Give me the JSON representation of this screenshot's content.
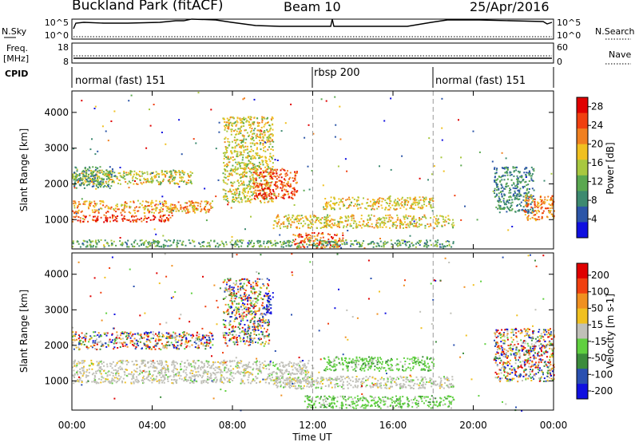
{
  "header": {
    "title": "Buckland Park (fitACF)",
    "beam": "Beam 10",
    "date": "25/Apr/2016"
  },
  "left_labels": {
    "nsky": "N.Sky",
    "freq": "Freq.",
    "freq_unit": "[MHz]",
    "cpid": "CPID"
  },
  "right_labels": {
    "nsearch": "N.Search",
    "nave": "Nave"
  },
  "nsky_axis": {
    "top": "10^5",
    "bottom": "10^0"
  },
  "freq_axis": {
    "top": "18",
    "bottom": "8"
  },
  "nave_axis": {
    "top": "60",
    "bottom": "0"
  },
  "cpid_segments": [
    {
      "label": "normal (fast) 151",
      "start_hour": 0,
      "end_hour": 12
    },
    {
      "label": "rbsp 200",
      "start_hour": 12,
      "end_hour": 18
    },
    {
      "label": "normal (fast) 151",
      "start_hour": 18,
      "end_hour": 24
    }
  ],
  "chart_data": [
    {
      "type": "heatmap",
      "name": "Power",
      "ylabel": "Slant Range [km]",
      "yticks": [
        1000,
        2000,
        3000,
        4000
      ],
      "ylim": [
        180,
        4600
      ],
      "colorbar_label": "Power [dB]",
      "colorbar_ticks": [
        4,
        8,
        12,
        16,
        20,
        24,
        28
      ],
      "colorbar_range": [
        0,
        30
      ],
      "colors": [
        "#1010e0",
        "#2c56a8",
        "#3d8a70",
        "#5aa850",
        "#a8c840",
        "#f0c020",
        "#f08020",
        "#f04010",
        "#e00000"
      ],
      "features": [
        {
          "from_hour": 0.0,
          "to_hour": 5.0,
          "range_min": 950,
          "range_max": 1150,
          "level": 0.88
        },
        {
          "from_hour": 0.0,
          "to_hour": 7.0,
          "range_min": 1200,
          "range_max": 1550,
          "level": 0.7
        },
        {
          "from_hour": 0.0,
          "to_hour": 6.0,
          "range_min": 2000,
          "range_max": 2400,
          "level": 0.55
        },
        {
          "from_hour": 0.0,
          "to_hour": 2.0,
          "range_min": 1900,
          "range_max": 2500,
          "level": 0.3
        },
        {
          "from_hour": 7.5,
          "to_hour": 10.0,
          "range_min": 1500,
          "range_max": 3900,
          "level": 0.55
        },
        {
          "from_hour": 9.0,
          "to_hour": 11.2,
          "range_min": 1600,
          "range_max": 2450,
          "level": 0.85
        },
        {
          "from_hour": 10.0,
          "to_hour": 19.0,
          "range_min": 780,
          "range_max": 1150,
          "level": 0.6
        },
        {
          "from_hour": 12.5,
          "to_hour": 18.0,
          "range_min": 1300,
          "range_max": 1650,
          "level": 0.6
        },
        {
          "from_hour": 11.0,
          "to_hour": 13.5,
          "range_min": 220,
          "range_max": 650,
          "level": 0.8
        },
        {
          "from_hour": 0.0,
          "to_hour": 19.0,
          "range_min": 250,
          "range_max": 450,
          "level": 0.35
        },
        {
          "from_hour": 21.0,
          "to_hour": 23.0,
          "range_min": 1200,
          "range_max": 2500,
          "level": 0.25
        },
        {
          "from_hour": 22.5,
          "to_hour": 24.0,
          "range_min": 1000,
          "range_max": 1700,
          "level": 0.75
        }
      ]
    },
    {
      "type": "heatmap",
      "name": "Velocity",
      "ylabel": "Slant Range [km]",
      "yticks": [
        1000,
        2000,
        3000,
        4000
      ],
      "ylim": [
        180,
        4600
      ],
      "colorbar_label": "Velocity [m s-1]",
      "colorbar_ticks": [
        "200",
        "100",
        "50",
        "15",
        "-15",
        "-50",
        "-100",
        "-200"
      ],
      "colors": [
        "#1010e0",
        "#2a50b0",
        "#3c8c3c",
        "#60d040",
        "#c0c0b8",
        "#f0c020",
        "#f09020",
        "#f04010",
        "#e00000"
      ],
      "features": [
        {
          "from_hour": 0.0,
          "to_hour": 7.0,
          "range_min": 1900,
          "range_max": 2400,
          "level": 0.5,
          "kind": "mixed"
        },
        {
          "from_hour": 0.0,
          "to_hour": 12.0,
          "range_min": 950,
          "range_max": 1600,
          "level": 0.45,
          "kind": "grey"
        },
        {
          "from_hour": 7.5,
          "to_hour": 9.8,
          "range_min": 2000,
          "range_max": 3900,
          "level": 0.6,
          "kind": "mixed"
        },
        {
          "from_hour": 9.6,
          "to_hour": 10.0,
          "range_min": 2900,
          "range_max": 3500,
          "level": 0.02,
          "kind": "blue"
        },
        {
          "from_hour": 12.5,
          "to_hour": 18.0,
          "range_min": 1300,
          "range_max": 1700,
          "level": 0.35,
          "kind": "green"
        },
        {
          "from_hour": 10.0,
          "to_hour": 19.0,
          "range_min": 800,
          "range_max": 1150,
          "level": 0.4,
          "kind": "grey"
        },
        {
          "from_hour": 11.5,
          "to_hour": 19.0,
          "range_min": 250,
          "range_max": 600,
          "level": 0.35,
          "kind": "green"
        },
        {
          "from_hour": 21.0,
          "to_hour": 24.0,
          "range_min": 1000,
          "range_max": 2500,
          "level": 0.7,
          "kind": "mixed"
        }
      ]
    }
  ],
  "x_axis": {
    "label": "Time UT",
    "ticks": [
      "00:00",
      "04:00",
      "08:00",
      "12:00",
      "16:00",
      "20:00",
      "00:00"
    ],
    "range_hours": [
      0,
      24
    ],
    "dashed_hours": [
      12,
      18
    ]
  }
}
